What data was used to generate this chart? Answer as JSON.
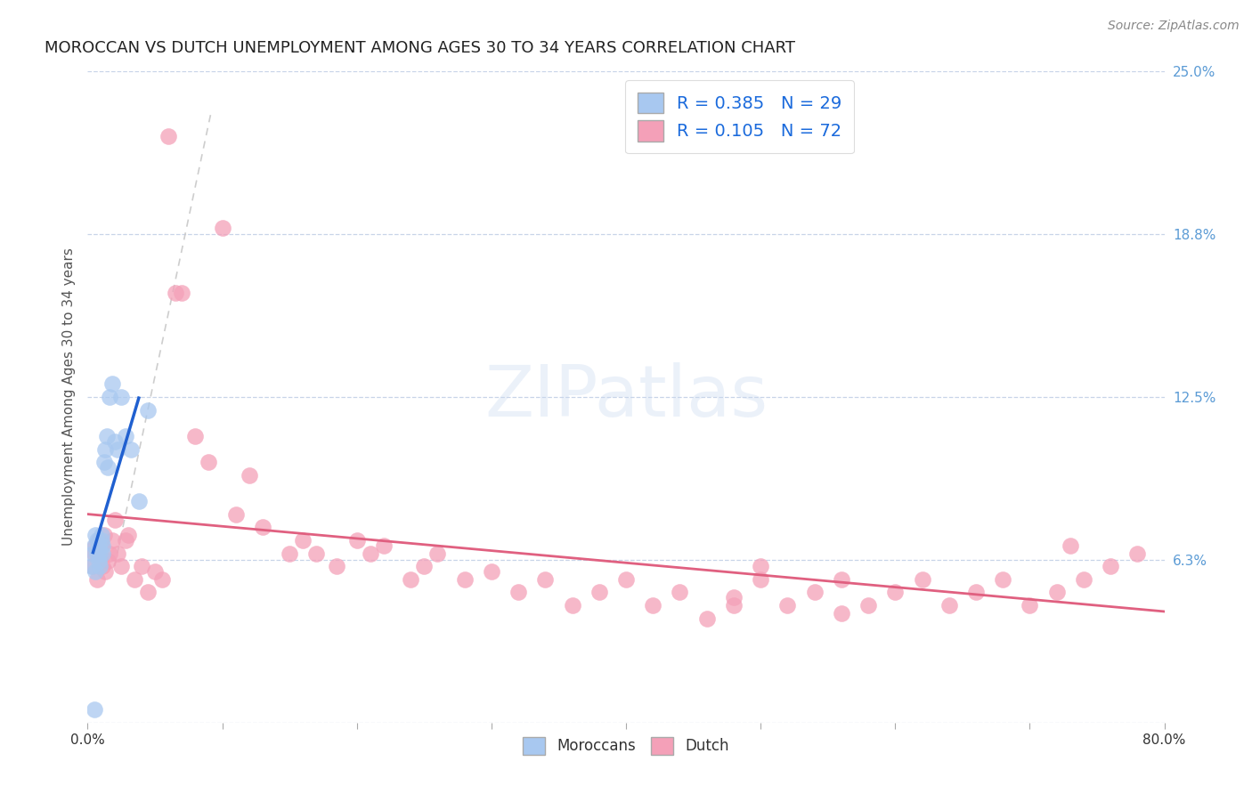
{
  "title": "MOROCCAN VS DUTCH UNEMPLOYMENT AMONG AGES 30 TO 34 YEARS CORRELATION CHART",
  "source": "Source: ZipAtlas.com",
  "ylabel": "Unemployment Among Ages 30 to 34 years",
  "xlim": [
    0,
    0.8
  ],
  "ylim": [
    0,
    0.25
  ],
  "ytick_positions": [
    0.0,
    0.0625,
    0.125,
    0.1875,
    0.25
  ],
  "ytick_labels": [
    "",
    "6.3%",
    "12.5%",
    "18.8%",
    "25.0%"
  ],
  "moroccan_R": 0.385,
  "moroccan_N": 29,
  "dutch_R": 0.105,
  "dutch_N": 72,
  "moroccan_color": "#a8c8f0",
  "dutch_color": "#f4a0b8",
  "moroccan_trend_color": "#2060d0",
  "dutch_trend_color": "#e06080",
  "ref_line_color": "#c8c8c8",
  "background_color": "#ffffff",
  "grid_color": "#c8d4e8",
  "watermark": "ZIPatlas",
  "legend_moroccan_label": "Moroccans",
  "legend_dutch_label": "Dutch",
  "moroccan_x": [
    0.003,
    0.004,
    0.005,
    0.006,
    0.006,
    0.007,
    0.007,
    0.008,
    0.008,
    0.009,
    0.009,
    0.01,
    0.01,
    0.011,
    0.011,
    0.012,
    0.013,
    0.014,
    0.015,
    0.016,
    0.018,
    0.02,
    0.022,
    0.025,
    0.028,
    0.032,
    0.038,
    0.045,
    0.005
  ],
  "moroccan_y": [
    0.06,
    0.065,
    0.068,
    0.058,
    0.072,
    0.065,
    0.07,
    0.062,
    0.068,
    0.06,
    0.065,
    0.07,
    0.072,
    0.065,
    0.068,
    0.1,
    0.105,
    0.11,
    0.098,
    0.125,
    0.13,
    0.108,
    0.105,
    0.125,
    0.11,
    0.105,
    0.085,
    0.12,
    0.005
  ],
  "dutch_x": [
    0.004,
    0.005,
    0.006,
    0.007,
    0.008,
    0.009,
    0.01,
    0.011,
    0.012,
    0.013,
    0.015,
    0.016,
    0.018,
    0.02,
    0.022,
    0.025,
    0.028,
    0.03,
    0.035,
    0.04,
    0.045,
    0.05,
    0.055,
    0.06,
    0.065,
    0.07,
    0.08,
    0.09,
    0.1,
    0.11,
    0.12,
    0.13,
    0.15,
    0.16,
    0.17,
    0.185,
    0.2,
    0.21,
    0.22,
    0.24,
    0.25,
    0.26,
    0.28,
    0.3,
    0.32,
    0.34,
    0.36,
    0.38,
    0.4,
    0.42,
    0.44,
    0.46,
    0.48,
    0.5,
    0.52,
    0.54,
    0.56,
    0.58,
    0.6,
    0.62,
    0.64,
    0.66,
    0.68,
    0.7,
    0.72,
    0.74,
    0.76,
    0.78,
    0.73,
    0.5,
    0.48,
    0.56
  ],
  "dutch_y": [
    0.06,
    0.065,
    0.068,
    0.055,
    0.07,
    0.065,
    0.068,
    0.06,
    0.072,
    0.058,
    0.062,
    0.065,
    0.07,
    0.078,
    0.065,
    0.06,
    0.07,
    0.072,
    0.055,
    0.06,
    0.05,
    0.058,
    0.055,
    0.225,
    0.165,
    0.165,
    0.11,
    0.1,
    0.19,
    0.08,
    0.095,
    0.075,
    0.065,
    0.07,
    0.065,
    0.06,
    0.07,
    0.065,
    0.068,
    0.055,
    0.06,
    0.065,
    0.055,
    0.058,
    0.05,
    0.055,
    0.045,
    0.05,
    0.055,
    0.045,
    0.05,
    0.04,
    0.045,
    0.055,
    0.045,
    0.05,
    0.042,
    0.045,
    0.05,
    0.055,
    0.045,
    0.05,
    0.055,
    0.045,
    0.05,
    0.055,
    0.06,
    0.065,
    0.068,
    0.06,
    0.048,
    0.055
  ],
  "title_fontsize": 13,
  "axis_label_fontsize": 11,
  "tick_fontsize": 11,
  "legend_fontsize": 14,
  "source_fontsize": 10
}
